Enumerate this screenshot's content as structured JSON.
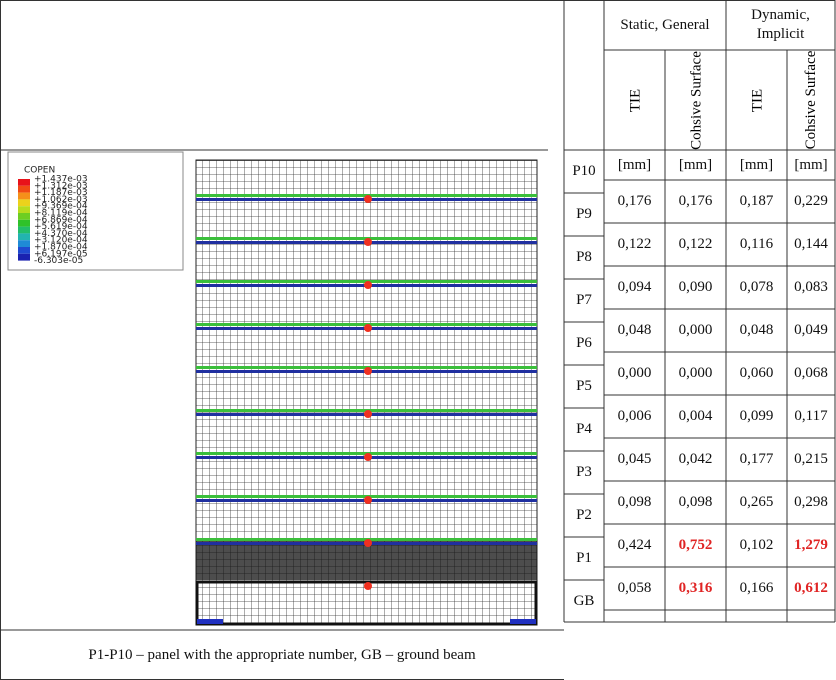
{
  "legend": {
    "title": "COPEN",
    "labels": [
      "+1.437e-03",
      "+1.312e-03",
      "+1.187e-03",
      "+1.062e-03",
      "+9.369e-04",
      "+8.119e-04",
      "+6.869e-04",
      "+5.619e-04",
      "+4.370e-04",
      "+3.120e-04",
      "+1.870e-04",
      "+6.197e-05",
      "-6.303e-05"
    ]
  },
  "table": {
    "column_groups": [
      "Static, General",
      "Dynamic, Implicit"
    ],
    "columns": [
      "TIE",
      "Cohsive Surface",
      "TIE",
      "Cohsive Surface"
    ],
    "row_labels": [
      "P10",
      "P9",
      "P8",
      "P7",
      "P6",
      "P5",
      "P4",
      "P3",
      "P2",
      "P1",
      "GB"
    ],
    "rows": [
      [
        "[mm]",
        "[mm]",
        "[mm]",
        "[mm]"
      ],
      [
        "0,176",
        "0,176",
        "0,187",
        "0,229"
      ],
      [
        "0,122",
        "0,122",
        "0,116",
        "0,144"
      ],
      [
        "0,094",
        "0,090",
        "0,078",
        "0,083"
      ],
      [
        "0,048",
        "0,000",
        "0,048",
        "0,049"
      ],
      [
        "0,000",
        "0,000",
        "0,060",
        "0,068"
      ],
      [
        "0,006",
        "0,004",
        "0,099",
        "0,117"
      ],
      [
        "0,045",
        "0,042",
        "0,177",
        "0,215"
      ],
      [
        "0,098",
        "0,098",
        "0,265",
        "0,298"
      ],
      [
        "0,424",
        "0,752",
        "0,102",
        "1,279"
      ],
      [
        "0,058",
        "0,316",
        "0,166",
        "0,612"
      ]
    ]
  },
  "caption": "P1-P10 – panel with the appropriate number, GB – ground beam"
}
